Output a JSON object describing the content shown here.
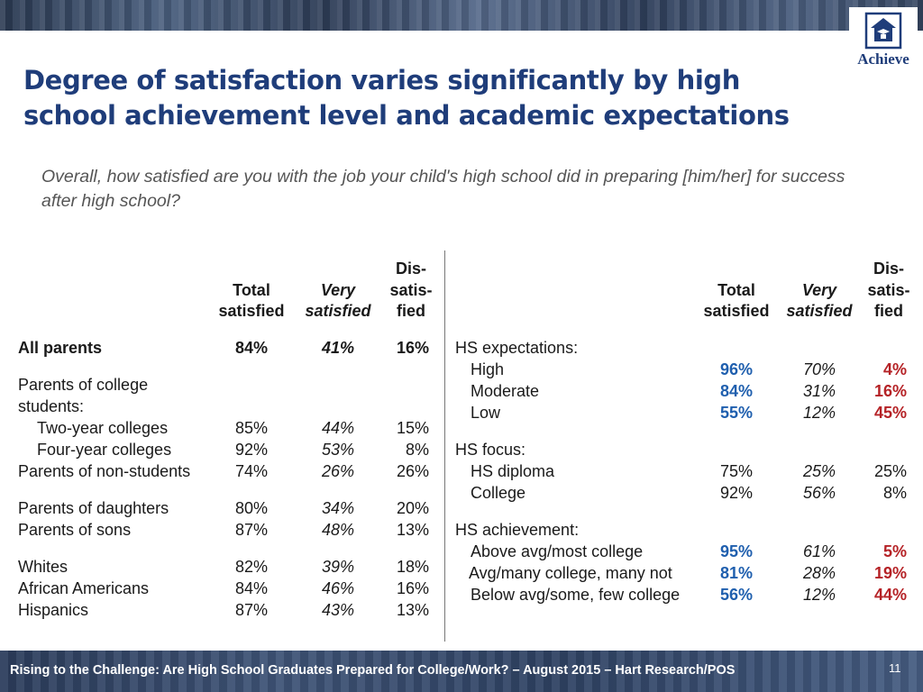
{
  "logo": {
    "text": "Achieve"
  },
  "title": "Degree of satisfaction varies significantly by high school achievement level and academic expectations",
  "question": "Overall, how satisfied are you with the job your child's high school did in preparing [him/her] for success after high school?",
  "headers": {
    "total": [
      "Total",
      "satisfied"
    ],
    "very": [
      "Very",
      "satisfied"
    ],
    "dis": [
      "Dis-",
      "satis-",
      "fied"
    ]
  },
  "left_rows": [
    {
      "label": "All parents",
      "total": "84%",
      "very": "41%",
      "dis": "16%"
    },
    {
      "label": "Parents of college"
    },
    {
      "label": "students:"
    },
    {
      "label": "Two-year colleges",
      "total": "85%",
      "very": "44%",
      "dis": "15%"
    },
    {
      "label": "Four-year colleges",
      "total": "92%",
      "very": "53%",
      "dis": "8%"
    },
    {
      "label": "Parents of non-students",
      "total": "74%",
      "very": "26%",
      "dis": "26%"
    },
    {
      "label": "Parents of daughters",
      "total": "80%",
      "very": "34%",
      "dis": "20%"
    },
    {
      "label": "Parents of sons",
      "total": "87%",
      "very": "48%",
      "dis": "13%"
    },
    {
      "label": "Whites",
      "total": "82%",
      "very": "39%",
      "dis": "18%"
    },
    {
      "label": "African Americans",
      "total": "84%",
      "very": "46%",
      "dis": "16%"
    },
    {
      "label": "Hispanics",
      "total": "87%",
      "very": "43%",
      "dis": "13%"
    }
  ],
  "right_rows": [
    {
      "label": "HS expectations:"
    },
    {
      "label": "High",
      "total": "96%",
      "very": "70%",
      "dis": "4%"
    },
    {
      "label": "Moderate",
      "total": "84%",
      "very": "31%",
      "dis": "16%"
    },
    {
      "label": "Low",
      "total": "55%",
      "very": "12%",
      "dis": "45%"
    },
    {
      "label": "HS focus:"
    },
    {
      "label": "HS diploma",
      "total": "75%",
      "very": "25%",
      "dis": "25%"
    },
    {
      "label": "College",
      "total": "92%",
      "very": "56%",
      "dis": "8%"
    },
    {
      "label": "HS achievement:"
    },
    {
      "label": "Above avg/most college",
      "total": "95%",
      "very": "61%",
      "dis": "5%"
    },
    {
      "label": "Avg/many college, many not",
      "total": "81%",
      "very": "28%",
      "dis": "19%"
    },
    {
      "label": "Below avg/some, few college",
      "total": "56%",
      "very": "12%",
      "dis": "44%"
    }
  ],
  "colors": {
    "title": "#1f3d7a",
    "total_highlight": "#1f5fae",
    "dis_highlight": "#b52226"
  },
  "footer": {
    "text": "Rising to the Challenge:  Are High School Graduates Prepared for College/Work? – August 2015 – Hart Research/POS",
    "page": "11"
  }
}
